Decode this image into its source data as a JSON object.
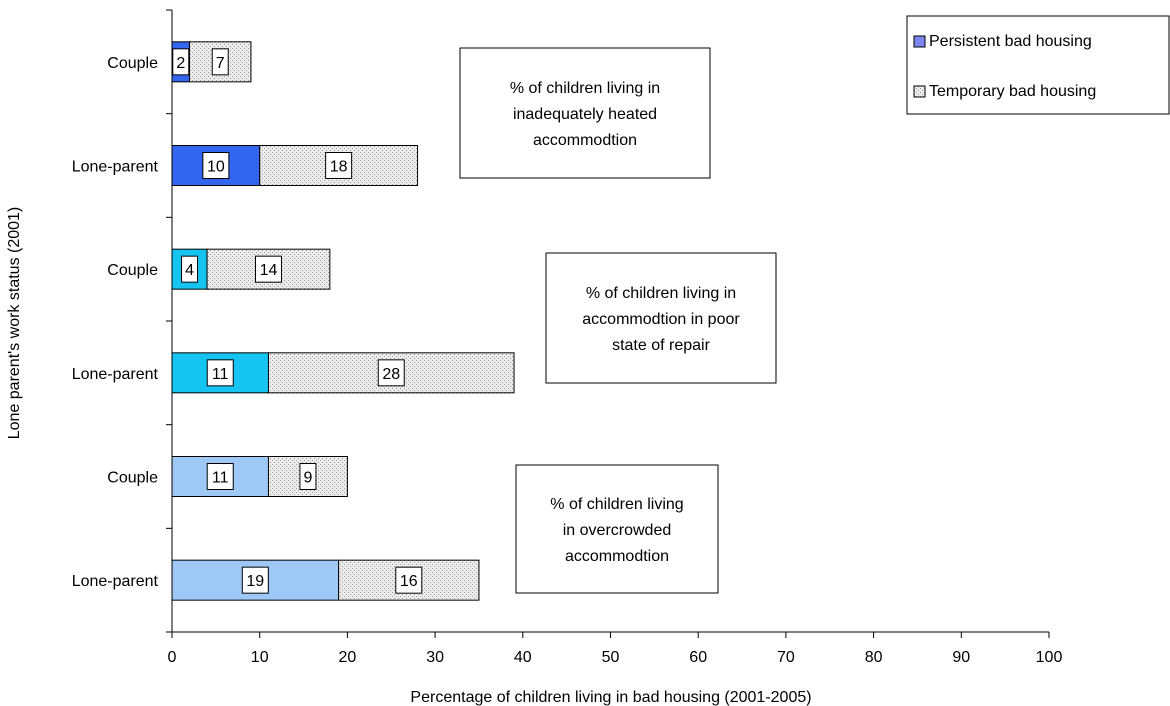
{
  "chart_data": {
    "type": "bar",
    "orientation": "horizontal",
    "stacked": true,
    "xlabel": "Percentage of children living in bad housing (2001-2005)",
    "ylabel": "Lone parent's work status (2001)",
    "xlim": [
      0,
      100
    ],
    "xticks": [
      0,
      10,
      20,
      30,
      40,
      50,
      60,
      70,
      80,
      90,
      100
    ],
    "grid": false,
    "legend_position": "top-right",
    "legend": [
      {
        "label": "Persistent bad housing",
        "pattern": "solid",
        "color": "#7b86f0"
      },
      {
        "label": "Temporary bad housing",
        "pattern": "dotted",
        "color": "#e8e8e8"
      }
    ],
    "categories": [
      "Couple",
      "Lone-parent",
      "Couple",
      "Lone-parent",
      "Couple",
      "Lone-parent"
    ],
    "series": [
      {
        "name": "Persistent bad housing",
        "values": [
          2,
          10,
          4,
          11,
          11,
          19
        ]
      },
      {
        "name": "Temporary bad housing",
        "values": [
          7,
          18,
          14,
          28,
          9,
          16
        ]
      }
    ],
    "bar_colors": [
      "#3366ee",
      "#3366ee",
      "#15c4f0",
      "#15c4f0",
      "#9ec8f5",
      "#9ec8f5"
    ],
    "groups": [
      {
        "lines": [
          "% of children living in",
          "inadequately heated",
          "accommodtion"
        ]
      },
      {
        "lines": [
          "% of children living in",
          "accommodtion in poor",
          "state of repair"
        ]
      },
      {
        "lines": [
          "% of children living",
          "in overcrowded",
          "accommodtion"
        ]
      }
    ]
  }
}
